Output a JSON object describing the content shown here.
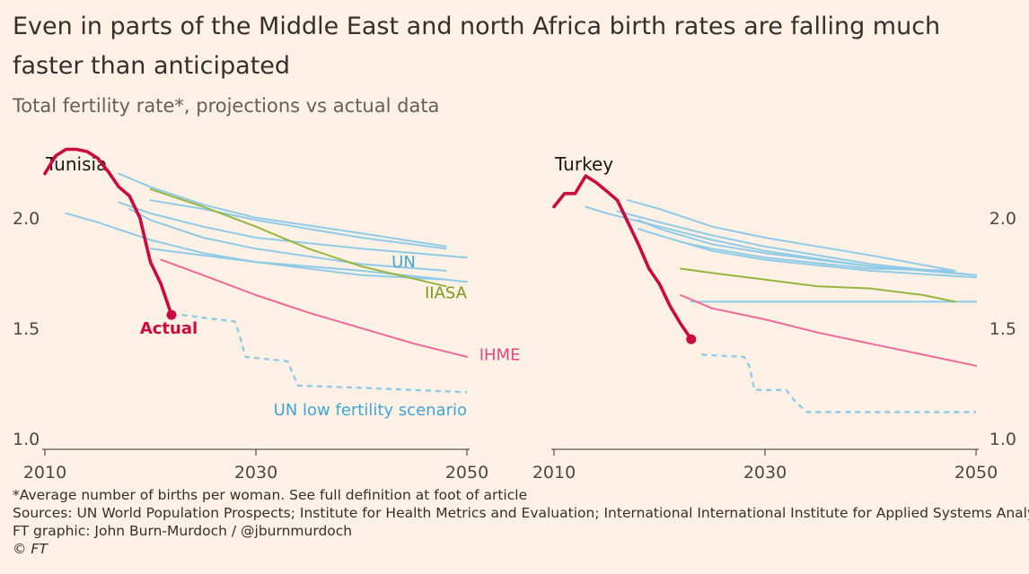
{
  "title": "Even in parts of the Middle East and north Africa birth rates are falling much faster than anticipated",
  "subtitle": "Total fertility rate*, projections vs actual data",
  "footnote": "*Average number of births per woman. See full definition at foot of article",
  "sources": "Sources: UN World Population Prospects; Institute for Health Metrics and Evaluation; International International Institute for Applied Systems Analysis",
  "graphic_credit": "FT graphic: John Burn-Murdoch / @jburnmurdoch",
  "copyright": "© FT",
  "colors": {
    "actual": "#cc0a3f",
    "un": "#8fcbe8",
    "un_label": "#3fa6d8",
    "iiasa": "#96b63f",
    "iiasa_label": "#7a9a1e",
    "ihme": "#f0679a",
    "ihme_label": "#e2477f",
    "axis": "#33302e",
    "tick_text": "#4d4845"
  },
  "chart_data": [
    {
      "type": "line",
      "title": "Tunisia",
      "xlim": [
        2010,
        2050
      ],
      "ylim": [
        1.0,
        2.3
      ],
      "x_ticks": [
        2010,
        2030,
        2050
      ],
      "x_tick_labels": [
        "2010",
        "2030",
        "2050"
      ],
      "y_ticks": [
        1.0,
        1.5,
        2.0
      ],
      "y_tick_labels": [
        "1.0",
        "1.5",
        "2.0"
      ],
      "y_axis_side": "left",
      "series": [
        {
          "name": "Actual",
          "kind": "actual",
          "x": [
            2010,
            2011,
            2012,
            2013,
            2014,
            2015,
            2016,
            2017,
            2018,
            2019,
            2020,
            2021,
            2022
          ],
          "y": [
            2.2,
            2.28,
            2.31,
            2.31,
            2.3,
            2.27,
            2.21,
            2.14,
            2.1,
            2.0,
            1.8,
            1.7,
            1.56
          ]
        },
        {
          "kind": "un",
          "x": [
            2017,
            2020,
            2025,
            2030,
            2040,
            2048
          ],
          "y": [
            2.2,
            2.14,
            2.06,
            2.0,
            1.93,
            1.87
          ]
        },
        {
          "kind": "un",
          "x": [
            2020,
            2025,
            2030,
            2040,
            2048
          ],
          "y": [
            2.08,
            2.04,
            1.99,
            1.91,
            1.86
          ]
        },
        {
          "kind": "un",
          "x": [
            2017,
            2020,
            2025,
            2030,
            2040,
            2050
          ],
          "y": [
            2.07,
            2.02,
            1.96,
            1.91,
            1.86,
            1.82
          ]
        },
        {
          "kind": "un",
          "x": [
            2018,
            2020,
            2025,
            2030,
            2040,
            2048
          ],
          "y": [
            2.04,
            1.99,
            1.91,
            1.86,
            1.79,
            1.76
          ]
        },
        {
          "kind": "un",
          "x": [
            2012,
            2015,
            2020,
            2025,
            2030,
            2040,
            2050
          ],
          "y": [
            2.02,
            1.98,
            1.9,
            1.84,
            1.8,
            1.76,
            1.71
          ]
        },
        {
          "kind": "un",
          "x": [
            2020,
            2025,
            2030,
            2040,
            2048
          ],
          "y": [
            1.86,
            1.83,
            1.8,
            1.74,
            1.72
          ]
        },
        {
          "name": "IIASA",
          "kind": "iiasa",
          "x": [
            2020,
            2025,
            2030,
            2035,
            2040,
            2048
          ],
          "y": [
            2.13,
            2.05,
            1.96,
            1.86,
            1.78,
            1.69
          ]
        },
        {
          "name": "IHME",
          "kind": "ihme",
          "x": [
            2021,
            2025,
            2030,
            2035,
            2040,
            2045,
            2050
          ],
          "y": [
            1.81,
            1.74,
            1.65,
            1.57,
            1.5,
            1.43,
            1.37
          ]
        },
        {
          "name": "UN low fertility scenario",
          "kind": "un_low",
          "x": [
            2023,
            2028,
            2028.5,
            2029,
            2033,
            2034,
            2040,
            2050
          ],
          "y": [
            1.56,
            1.53,
            1.46,
            1.37,
            1.35,
            1.24,
            1.23,
            1.21
          ]
        }
      ],
      "labels": [
        {
          "text": "Actual",
          "kind": "actual",
          "x": 2022,
          "y": 1.5
        },
        {
          "text": "UN",
          "kind": "un",
          "x": 2044,
          "y": 1.8
        },
        {
          "text": "IIASA",
          "kind": "iiasa",
          "x": 2050,
          "y": 1.66
        },
        {
          "text": "IHME",
          "kind": "ihme",
          "x": 2051,
          "y": 1.38
        },
        {
          "text": "UN low fertility scenario",
          "kind": "un_low",
          "x": 2050,
          "y": 1.13
        }
      ]
    },
    {
      "type": "line",
      "title": "Turkey",
      "xlim": [
        2010,
        2050
      ],
      "ylim": [
        1.0,
        2.3
      ],
      "x_ticks": [
        2010,
        2030,
        2050
      ],
      "x_tick_labels": [
        "2010",
        "2030",
        "2050"
      ],
      "y_ticks": [
        1.0,
        1.5,
        2.0
      ],
      "y_tick_labels": [
        "1.0",
        "1.5",
        "2.0"
      ],
      "y_axis_side": "right",
      "series": [
        {
          "kind": "actual",
          "x": [
            2010,
            2011,
            2012,
            2013,
            2014,
            2015,
            2016,
            2017,
            2018,
            2019,
            2020,
            2021,
            2022,
            2023
          ],
          "y": [
            2.05,
            2.11,
            2.11,
            2.19,
            2.16,
            2.12,
            2.08,
            1.98,
            1.88,
            1.77,
            1.7,
            1.6,
            1.52,
            1.45
          ]
        },
        {
          "kind": "un",
          "x": [
            2017,
            2020,
            2025,
            2030,
            2040,
            2048
          ],
          "y": [
            2.08,
            2.04,
            1.96,
            1.91,
            1.83,
            1.76
          ]
        },
        {
          "kind": "un",
          "x": [
            2016,
            2020,
            2025,
            2030,
            2040,
            2050
          ],
          "y": [
            2.03,
            1.98,
            1.92,
            1.87,
            1.79,
            1.74
          ]
        },
        {
          "kind": "un",
          "x": [
            2013,
            2015,
            2020,
            2025,
            2030,
            2040,
            2050
          ],
          "y": [
            2.05,
            2.02,
            1.96,
            1.9,
            1.85,
            1.78,
            1.74
          ]
        },
        {
          "kind": "un",
          "x": [
            2018,
            2020,
            2025,
            2030,
            2040,
            2048
          ],
          "y": [
            1.99,
            1.95,
            1.88,
            1.84,
            1.78,
            1.75
          ]
        },
        {
          "kind": "un",
          "x": [
            2018,
            2020,
            2025,
            2030,
            2040,
            2050
          ],
          "y": [
            1.95,
            1.92,
            1.85,
            1.81,
            1.76,
            1.73
          ]
        },
        {
          "kind": "un",
          "x": [
            2022,
            2025,
            2030,
            2040,
            2048
          ],
          "y": [
            1.89,
            1.86,
            1.82,
            1.77,
            1.76
          ]
        },
        {
          "kind": "un",
          "x": [
            2023,
            2030,
            2040,
            2050
          ],
          "y": [
            1.62,
            1.62,
            1.62,
            1.62
          ]
        },
        {
          "kind": "iiasa",
          "x": [
            2022,
            2025,
            2030,
            2035,
            2040,
            2045,
            2048
          ],
          "y": [
            1.77,
            1.75,
            1.72,
            1.69,
            1.68,
            1.65,
            1.62
          ]
        },
        {
          "kind": "ihme",
          "x": [
            2022,
            2025,
            2030,
            2035,
            2040,
            2045,
            2050
          ],
          "y": [
            1.65,
            1.59,
            1.54,
            1.48,
            1.43,
            1.38,
            1.33
          ]
        },
        {
          "kind": "un_low",
          "x": [
            2024,
            2028,
            2028.5,
            2029,
            2032,
            2033,
            2034,
            2040,
            2050
          ],
          "y": [
            1.38,
            1.37,
            1.33,
            1.22,
            1.22,
            1.16,
            1.12,
            1.12,
            1.12
          ]
        }
      ],
      "labels": []
    }
  ]
}
